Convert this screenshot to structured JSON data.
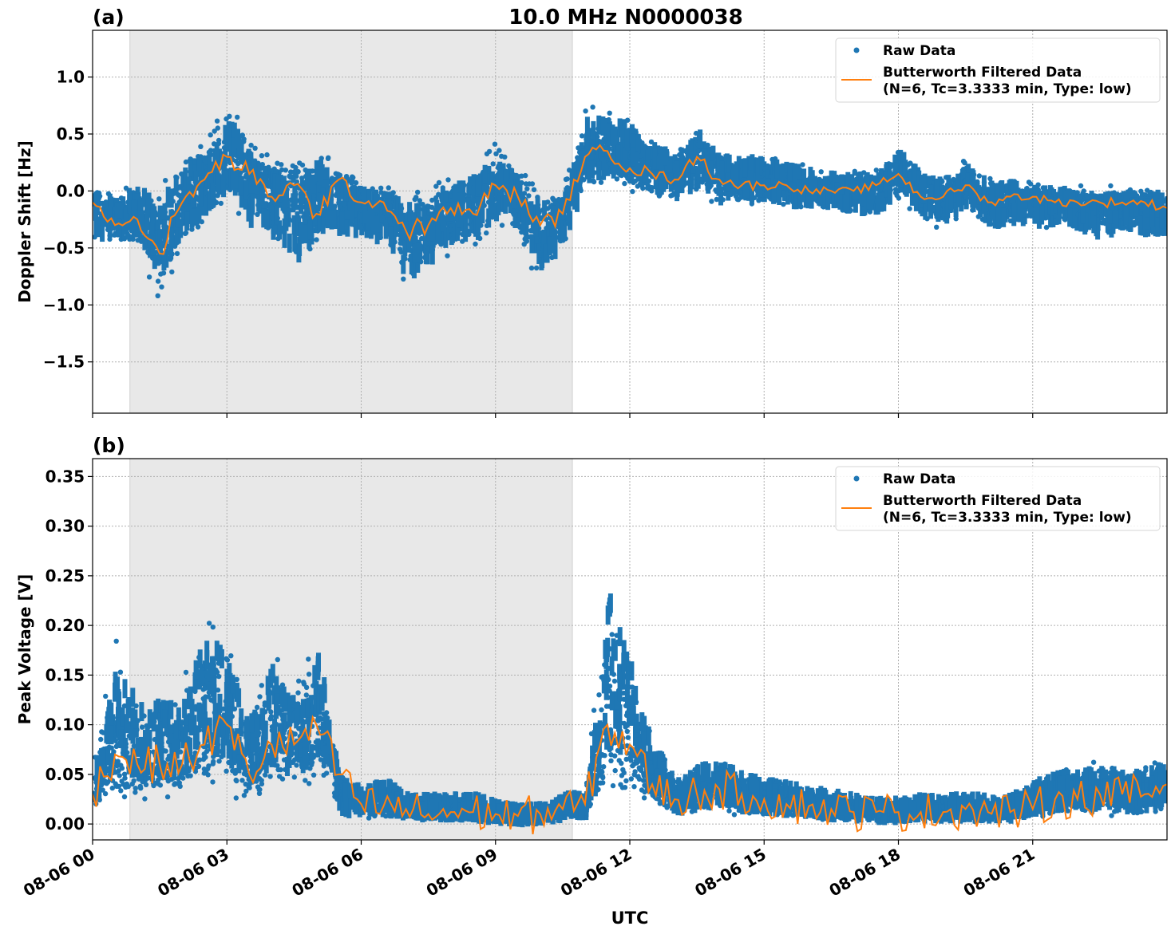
{
  "figure_title": "10.0 MHz N0000038",
  "colors": {
    "raw": "#1f77b4",
    "filtered": "#ff7f0e",
    "shade": "#e8e8e8",
    "grid": "#b0b0b0"
  },
  "shaded_interval": [
    "08-06 00:50",
    "08-06 10:43"
  ],
  "x_tick_labels": [
    "08-06 00",
    "08-06 03",
    "08-06 06",
    "08-06 09",
    "08-06 12",
    "08-06 15",
    "08-06 18",
    "08-06 21"
  ],
  "x_ticks": [
    "08-06 00:00",
    "08-06 03:00",
    "08-06 06:00",
    "08-06 09:00",
    "08-06 12:00",
    "08-06 15:00",
    "08-06 18:00",
    "08-06 21:00"
  ],
  "xlim": [
    "08-06 00:00",
    "08-07 00:00"
  ],
  "xlabel": "UTC",
  "legend": {
    "raw": "Raw Data",
    "filtered_line1": "Butterworth Filtered Data",
    "filtered_line2": "(N=6, Tc=3.3333 min, Type: low)",
    "placement": "top-right"
  },
  "chart_data": [
    {
      "type": "scatter+line",
      "panel_label": "(a)",
      "ylabel": "Doppler Shift [Hz]",
      "ylim": [
        -1.95,
        1.41
      ],
      "y_ticks": [
        1.0,
        0.5,
        0.0,
        -0.5,
        -1.0,
        -1.5
      ],
      "y_tick_labels": [
        "1.0",
        "0.5",
        "0.0",
        "−0.5",
        "−1.0",
        "−1.5"
      ],
      "grid": true,
      "x": [
        "08-06 00:00",
        "08-06 00:30",
        "08-06 01:00",
        "08-06 01:30",
        "08-06 02:00",
        "08-06 02:30",
        "08-06 03:00",
        "08-06 03:30",
        "08-06 04:00",
        "08-06 04:30",
        "08-06 05:00",
        "08-06 05:30",
        "08-06 06:00",
        "08-06 06:30",
        "08-06 07:00",
        "08-06 07:30",
        "08-06 08:00",
        "08-06 08:30",
        "08-06 09:00",
        "08-06 09:30",
        "08-06 10:00",
        "08-06 10:30",
        "08-06 11:00",
        "08-06 11:30",
        "08-06 12:00",
        "08-06 12:30",
        "08-06 13:00",
        "08-06 13:30",
        "08-06 14:00",
        "08-06 14:30",
        "08-06 15:00",
        "08-06 15:30",
        "08-06 16:00",
        "08-06 16:30",
        "08-06 17:00",
        "08-06 17:30",
        "08-06 18:00",
        "08-06 18:30",
        "08-06 19:00",
        "08-06 19:30",
        "08-06 20:00",
        "08-06 20:30",
        "08-06 21:00",
        "08-06 21:30",
        "08-06 22:00",
        "08-06 22:30",
        "08-06 23:00",
        "08-06 23:30",
        "08-07 00:00"
      ],
      "series": [
        {
          "name": "Butterworth Filtered Data",
          "values": [
            -0.1,
            -0.3,
            -0.25,
            -0.55,
            -0.1,
            0.1,
            0.3,
            0.15,
            -0.05,
            0.05,
            -0.2,
            0.1,
            -0.1,
            -0.1,
            -0.35,
            -0.3,
            -0.15,
            -0.2,
            0.05,
            -0.05,
            -0.3,
            -0.2,
            0.3,
            0.35,
            0.2,
            0.15,
            0.1,
            0.3,
            0.1,
            0.05,
            0.05,
            0.05,
            0.0,
            0.0,
            0.0,
            0.05,
            0.15,
            -0.05,
            -0.05,
            0.05,
            -0.1,
            -0.05,
            -0.05,
            -0.1,
            -0.1,
            -0.1,
            -0.1,
            -0.1,
            -0.15
          ]
        },
        {
          "name": "Raw Data",
          "values_high": [
            0.05,
            0.05,
            0.15,
            0.2,
            0.4,
            0.5,
            0.9,
            0.5,
            0.4,
            0.3,
            0.5,
            0.2,
            0.15,
            0.1,
            0.1,
            0.1,
            0.2,
            0.3,
            0.5,
            0.3,
            0.1,
            0.1,
            0.8,
            0.8,
            0.7,
            0.5,
            0.4,
            0.7,
            0.4,
            0.4,
            0.35,
            0.3,
            0.25,
            0.2,
            0.2,
            0.2,
            0.45,
            0.2,
            0.2,
            0.3,
            0.15,
            0.15,
            0.1,
            0.1,
            0.05,
            0.05,
            0.05,
            0.05,
            0.1
          ],
          "values_low": [
            -0.5,
            -0.5,
            -0.5,
            -1.1,
            -0.5,
            -0.4,
            -0.2,
            -0.5,
            -0.6,
            -0.9,
            -0.6,
            -0.5,
            -0.5,
            -0.6,
            -1.0,
            -0.8,
            -0.6,
            -0.6,
            -0.4,
            -0.5,
            -0.9,
            -0.6,
            -0.1,
            0.0,
            -0.05,
            -0.1,
            -0.15,
            -0.1,
            -0.2,
            -0.15,
            -0.15,
            -0.2,
            -0.2,
            -0.2,
            -0.25,
            -0.25,
            -0.1,
            -0.3,
            -0.35,
            -0.2,
            -0.4,
            -0.35,
            -0.4,
            -0.35,
            -0.4,
            -0.5,
            -0.4,
            -0.45,
            -0.5
          ]
        }
      ]
    },
    {
      "type": "scatter+line",
      "panel_label": "(b)",
      "ylabel": "Peak Voltage [V]",
      "ylim": [
        -0.016,
        0.368
      ],
      "y_ticks": [
        0.35,
        0.3,
        0.25,
        0.2,
        0.15,
        0.1,
        0.05,
        0.0
      ],
      "y_tick_labels": [
        "0.35",
        "0.30",
        "0.25",
        "0.20",
        "0.15",
        "0.10",
        "0.05",
        "0.00"
      ],
      "grid": true,
      "x": [
        "08-06 00:00",
        "08-06 00:30",
        "08-06 01:00",
        "08-06 01:30",
        "08-06 02:00",
        "08-06 02:30",
        "08-06 03:00",
        "08-06 03:30",
        "08-06 04:00",
        "08-06 04:30",
        "08-06 05:00",
        "08-06 05:30",
        "08-06 06:00",
        "08-06 06:30",
        "08-06 07:00",
        "08-06 07:30",
        "08-06 08:00",
        "08-06 08:30",
        "08-06 09:00",
        "08-06 09:30",
        "08-06 10:00",
        "08-06 10:30",
        "08-06 11:00",
        "08-06 11:30",
        "08-06 12:00",
        "08-06 12:30",
        "08-06 13:00",
        "08-06 13:30",
        "08-06 14:00",
        "08-06 14:30",
        "08-06 15:00",
        "08-06 15:30",
        "08-06 16:00",
        "08-06 16:30",
        "08-06 17:00",
        "08-06 17:30",
        "08-06 18:00",
        "08-06 18:30",
        "08-06 19:00",
        "08-06 19:30",
        "08-06 20:00",
        "08-06 20:30",
        "08-06 21:00",
        "08-06 21:30",
        "08-06 22:00",
        "08-06 22:30",
        "08-06 23:00",
        "08-06 23:30",
        "08-07 00:00"
      ],
      "series": [
        {
          "name": "Butterworth Filtered Data",
          "values": [
            0.03,
            0.07,
            0.06,
            0.06,
            0.06,
            0.08,
            0.1,
            0.05,
            0.08,
            0.08,
            0.1,
            0.05,
            0.02,
            0.018,
            0.015,
            0.01,
            0.012,
            0.012,
            0.01,
            0.008,
            0.01,
            0.015,
            0.02,
            0.1,
            0.08,
            0.04,
            0.025,
            0.03,
            0.035,
            0.03,
            0.025,
            0.02,
            0.018,
            0.015,
            0.012,
            0.012,
            0.012,
            0.012,
            0.012,
            0.015,
            0.012,
            0.012,
            0.015,
            0.025,
            0.025,
            0.03,
            0.03,
            0.03,
            0.04
          ]
        },
        {
          "name": "Raw Data",
          "values_high": [
            0.07,
            0.2,
            0.15,
            0.15,
            0.15,
            0.25,
            0.2,
            0.13,
            0.2,
            0.15,
            0.22,
            0.05,
            0.04,
            0.05,
            0.03,
            0.03,
            0.03,
            0.03,
            0.02,
            0.015,
            0.02,
            0.03,
            0.035,
            0.3,
            0.2,
            0.1,
            0.05,
            0.07,
            0.07,
            0.06,
            0.05,
            0.045,
            0.04,
            0.035,
            0.03,
            0.025,
            0.025,
            0.03,
            0.03,
            0.03,
            0.03,
            0.03,
            0.05,
            0.06,
            0.06,
            0.07,
            0.06,
            0.06,
            0.08
          ],
          "values_low": [
            0.01,
            0.02,
            0.015,
            0.02,
            0.02,
            0.03,
            0.02,
            0.02,
            0.02,
            0.02,
            0.03,
            0.005,
            0.005,
            0.005,
            0.004,
            0.004,
            0.004,
            0.004,
            0.003,
            0.003,
            0.003,
            0.005,
            0.005,
            0.01,
            0.02,
            0.01,
            0.005,
            0.005,
            0.01,
            0.005,
            0.005,
            0.005,
            0.003,
            0.003,
            0.003,
            0.003,
            0.003,
            0.003,
            0.003,
            0.003,
            0.003,
            0.003,
            0.005,
            0.005,
            0.005,
            0.005,
            0.005,
            0.005,
            0.01
          ]
        }
      ]
    }
  ]
}
